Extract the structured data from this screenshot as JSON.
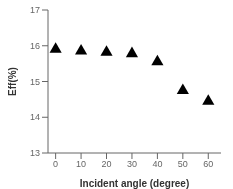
{
  "chart_data": {
    "type": "scatter",
    "x": [
      0,
      10,
      20,
      30,
      40,
      50,
      60
    ],
    "values": [
      15.9,
      15.85,
      15.82,
      15.78,
      15.55,
      14.75,
      14.45
    ],
    "xlim": [
      -3,
      65
    ],
    "ylim": [
      13,
      17
    ],
    "xticks": [
      0,
      10,
      20,
      30,
      40,
      50,
      60
    ],
    "yticks": [
      13,
      14,
      15,
      16,
      17
    ],
    "xlabel": "Incident angle (degree)",
    "ylabel": "Eff(%)",
    "color": "black",
    "marker": "triangle",
    "grid": false
  }
}
